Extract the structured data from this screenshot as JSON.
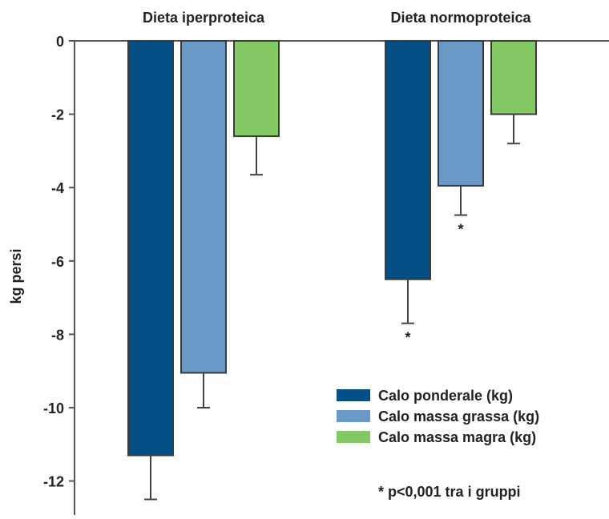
{
  "chart_data": {
    "type": "bar",
    "ylabel": "kg persi",
    "ylim": [
      -13.2,
      0
    ],
    "yticks": [
      0,
      -2,
      -4,
      -6,
      -8,
      -10,
      -12
    ],
    "ytick_labels": [
      "0",
      "-2",
      "-4",
      "-6",
      "-8",
      "-10",
      "-12"
    ],
    "categories": [
      "Dieta iperproteica",
      "Dieta normoproteica"
    ],
    "series": [
      {
        "name": "Calo ponderale (kg)",
        "values": [
          -11.3,
          -6.5
        ],
        "errors": [
          1.2,
          1.2
        ],
        "color": "#044f86"
      },
      {
        "name": "Calo massa grassa (kg)",
        "values": [
          -9.05,
          -3.95
        ],
        "errors": [
          0.95,
          0.8
        ],
        "color": "#6b99c7"
      },
      {
        "name": "Calo massa magra (kg)",
        "values": [
          -2.6,
          -2.0
        ],
        "errors": [
          1.05,
          0.8
        ],
        "color": "#84c864"
      }
    ],
    "significance": [
      {
        "category": 1,
        "series": 0,
        "label": "*"
      },
      {
        "category": 1,
        "series": 1,
        "label": "*"
      }
    ],
    "footnote": "* p<0,001 tra i gruppi",
    "legend_position": "bottom-right",
    "grid": false
  }
}
